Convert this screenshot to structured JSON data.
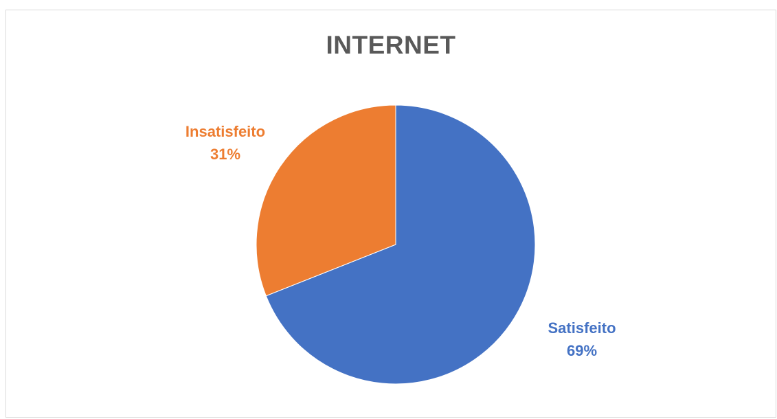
{
  "chart_data": {
    "type": "pie",
    "title": "INTERNET",
    "slices": [
      {
        "label": "Satisfeito",
        "value": 69,
        "value_label": "69%",
        "color": "#4472C4"
      },
      {
        "label": "Insatisfeito",
        "value": 31,
        "value_label": "31%",
        "color": "#ED7D31"
      }
    ],
    "start_angle_deg": 0,
    "direction": "clockwise",
    "legend": "none",
    "data_labels": "outside"
  }
}
